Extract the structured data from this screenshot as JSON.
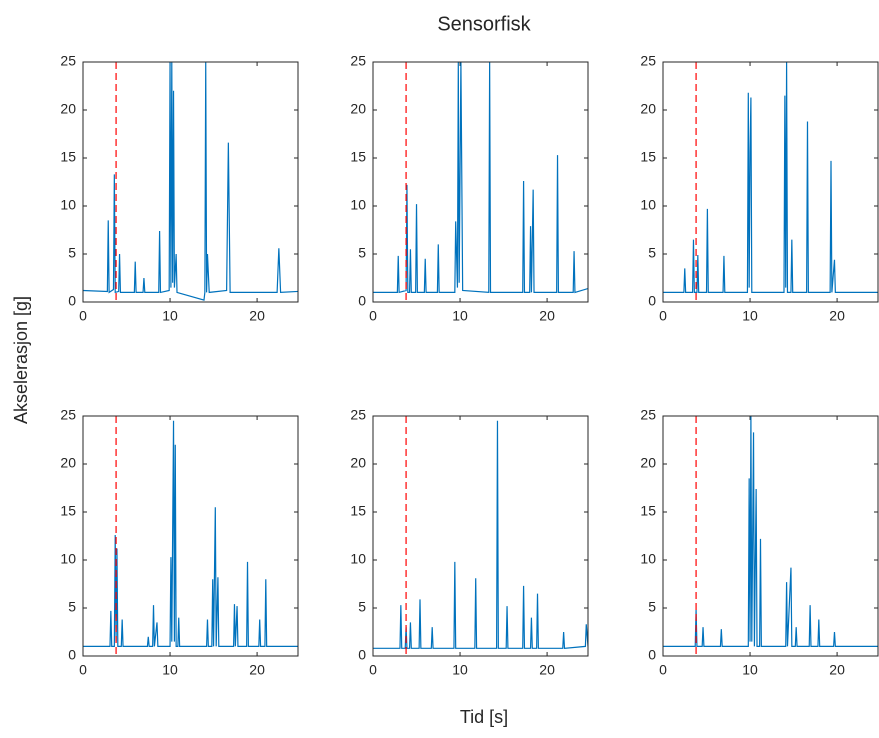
{
  "title": "Sensorfisk",
  "xlabel": "Tid [s]",
  "ylabel": "Akselerasjon [g]",
  "chart_data": [
    {
      "type": "line",
      "xlim": [
        0,
        24.7
      ],
      "ylim": [
        0,
        25
      ],
      "xticks": [
        0,
        10,
        20
      ],
      "yticks": [
        0,
        5,
        10,
        15,
        20,
        25
      ],
      "vline_x": 3.8,
      "vline_color": "#ff0000",
      "x": [
        0,
        2.8,
        2.9,
        3.0,
        3.5,
        3.6,
        3.7,
        4.1,
        4.2,
        4.3,
        5.9,
        6.0,
        6.1,
        6.9,
        7.0,
        7.1,
        8.7,
        8.8,
        8.9,
        9.9,
        10.0,
        10.1,
        10.2,
        10.3,
        10.4,
        10.5,
        10.7,
        10.8,
        13.9,
        14.0,
        14.1,
        14.2,
        14.3,
        14.5,
        16.5,
        16.7,
        16.9,
        22.3,
        22.5,
        22.7,
        24.7
      ],
      "series": [
        {
          "color": "#0072bd",
          "values": [
            1.2,
            1.1,
            8.5,
            1.0,
            1.3,
            13.3,
            1.0,
            1.1,
            5.0,
            1.0,
            1.0,
            4.2,
            1.0,
            1.0,
            2.5,
            1.0,
            1.0,
            7.4,
            1.0,
            1.2,
            25,
            1.5,
            25,
            2,
            22,
            1.5,
            5,
            1.0,
            0.2,
            1.0,
            25,
            1.0,
            5,
            1.0,
            1.2,
            16.6,
            1.0,
            1.0,
            5.6,
            1.0,
            1.1
          ]
        }
      ]
    },
    {
      "type": "line",
      "xlim": [
        0,
        24.7
      ],
      "ylim": [
        0,
        25
      ],
      "xticks": [
        0,
        10,
        20
      ],
      "yticks": [
        0,
        5,
        10,
        15,
        20,
        25
      ],
      "vline_x": 3.8,
      "vline_color": "#ff0000",
      "x": [
        0,
        2.8,
        2.9,
        3.0,
        3.8,
        3.9,
        4.0,
        4.2,
        4.3,
        4.4,
        4.9,
        5.0,
        5.1,
        5.9,
        6.0,
        6.1,
        7.4,
        7.5,
        7.6,
        9.4,
        9.5,
        9.7,
        9.8,
        9.9,
        10.1,
        10.3,
        13.3,
        13.4,
        13.5,
        17.2,
        17.3,
        17.4,
        18.0,
        18.1,
        18.2,
        18.4,
        18.5,
        21.1,
        21.2,
        21.3,
        23.0,
        23.1,
        23.2,
        24.7
      ],
      "series": [
        {
          "color": "#0072bd",
          "values": [
            1.0,
            1.0,
            4.8,
            1.0,
            1.2,
            12.2,
            1.0,
            1.0,
            5.5,
            1.0,
            1.0,
            10.2,
            1.0,
            1.0,
            4.5,
            1.0,
            1.0,
            6.0,
            1.0,
            1.0,
            8.4,
            1.5,
            25,
            2.0,
            25,
            1.2,
            1.0,
            25,
            1.0,
            1.0,
            12.6,
            1.0,
            1.0,
            7.9,
            1.0,
            11.7,
            1.0,
            1.0,
            15.3,
            1.0,
            1.0,
            5.3,
            1.0,
            1.4
          ]
        }
      ]
    },
    {
      "type": "line",
      "xlim": [
        0,
        24.7
      ],
      "ylim": [
        0,
        25
      ],
      "xticks": [
        0,
        10,
        20
      ],
      "yticks": [
        0,
        5,
        10,
        15,
        20,
        25
      ],
      "vline_x": 3.8,
      "vline_color": "#ff0000",
      "x": [
        0,
        2.4,
        2.5,
        2.6,
        3.4,
        3.5,
        3.6,
        3.9,
        4.0,
        4.1,
        5.0,
        5.1,
        5.2,
        6.9,
        7.0,
        7.1,
        9.7,
        9.8,
        9.9,
        10.0,
        10.1,
        10.2,
        13.9,
        14.0,
        14.1,
        14.2,
        14.3,
        14.7,
        14.8,
        14.9,
        16.5,
        16.6,
        16.7,
        19.2,
        19.3,
        19.4,
        19.7,
        19.8,
        24.7
      ],
      "series": [
        {
          "color": "#0072bd",
          "values": [
            1.0,
            1.0,
            3.5,
            1.0,
            1.0,
            6.5,
            1.0,
            1.0,
            4.9,
            1.0,
            1.0,
            9.7,
            1.0,
            1.0,
            4.8,
            1.0,
            1.0,
            21.8,
            1.5,
            15.6,
            21.3,
            1.0,
            1.0,
            21.5,
            1.5,
            25,
            1.0,
            1.0,
            6.5,
            1.0,
            1.0,
            18.8,
            1.0,
            1.0,
            14.7,
            1.0,
            4.4,
            1.0,
            1.0
          ]
        }
      ]
    },
    {
      "type": "line",
      "xlim": [
        0,
        24.7
      ],
      "ylim": [
        0,
        25
      ],
      "xticks": [
        0,
        10,
        20
      ],
      "yticks": [
        0,
        5,
        10,
        15,
        20,
        25
      ],
      "vline_x": 3.8,
      "vline_color": "#ff0000",
      "x": [
        0,
        3.1,
        3.2,
        3.3,
        3.6,
        3.7,
        3.8,
        3.9,
        4.0,
        4.4,
        4.5,
        4.6,
        7.4,
        7.5,
        7.6,
        8.0,
        8.1,
        8.2,
        8.5,
        8.6,
        10.0,
        10.1,
        10.2,
        10.4,
        10.5,
        10.6,
        10.7,
        10.9,
        11.0,
        11.1,
        14.2,
        14.3,
        14.4,
        14.8,
        14.9,
        15.0,
        15.2,
        15.3,
        15.5,
        15.6,
        17.3,
        17.4,
        17.5,
        17.7,
        17.8,
        18.8,
        18.9,
        19.0,
        20.2,
        20.3,
        20.4,
        20.9,
        21.0,
        21.1,
        24.7
      ],
      "series": [
        {
          "color": "#0072bd",
          "values": [
            1.0,
            1.0,
            4.7,
            1.0,
            1.0,
            12.6,
            1.5,
            11.2,
            1.0,
            1.0,
            3.8,
            1.0,
            1.0,
            2.0,
            1.0,
            1.0,
            5.3,
            1.0,
            3.5,
            1.0,
            1.0,
            10.3,
            1.5,
            24.5,
            1.5,
            22,
            1.0,
            1.0,
            4.0,
            1.0,
            1.0,
            3.8,
            1.0,
            1.0,
            8.0,
            1.0,
            15.5,
            1.0,
            8.2,
            1.0,
            1.0,
            5.4,
            1.0,
            5.2,
            1.0,
            1.0,
            9.8,
            1.0,
            1.0,
            3.8,
            1.0,
            1.0,
            8.0,
            1.0,
            1.0
          ]
        }
      ]
    },
    {
      "type": "line",
      "xlim": [
        0,
        24.7
      ],
      "ylim": [
        0,
        25
      ],
      "xticks": [
        0,
        10,
        20
      ],
      "yticks": [
        0,
        5,
        10,
        15,
        20,
        25
      ],
      "vline_x": 3.8,
      "vline_color": "#ff0000",
      "x": [
        0,
        3.1,
        3.2,
        3.3,
        3.7,
        3.8,
        3.9,
        4.2,
        4.3,
        4.4,
        5.3,
        5.4,
        5.5,
        6.7,
        6.8,
        6.9,
        9.3,
        9.4,
        9.5,
        11.7,
        11.8,
        11.9,
        14.2,
        14.3,
        14.4,
        15.3,
        15.4,
        15.5,
        17.2,
        17.3,
        17.4,
        18.1,
        18.2,
        18.3,
        18.8,
        18.9,
        19.0,
        21.8,
        21.9,
        22.0,
        24.4,
        24.5,
        24.7
      ],
      "series": [
        {
          "color": "#0072bd",
          "values": [
            0.8,
            0.8,
            5.3,
            0.8,
            0.8,
            3.0,
            0.8,
            0.8,
            3.5,
            0.8,
            0.8,
            5.9,
            0.8,
            0.8,
            3.0,
            0.8,
            0.8,
            9.8,
            0.8,
            0.8,
            8.1,
            0.8,
            0.8,
            24.5,
            0.8,
            0.8,
            5.2,
            0.8,
            0.8,
            7.3,
            0.8,
            0.8,
            4.0,
            0.8,
            0.8,
            6.5,
            0.8,
            0.8,
            2.5,
            0.8,
            1.0,
            3.3,
            1.0
          ]
        }
      ]
    },
    {
      "type": "line",
      "xlim": [
        0,
        24.7
      ],
      "ylim": [
        0,
        25
      ],
      "xticks": [
        0,
        10,
        20
      ],
      "yticks": [
        0,
        5,
        10,
        15,
        20,
        25
      ],
      "vline_x": 3.8,
      "vline_color": "#ff0000",
      "x": [
        0,
        3.7,
        3.8,
        3.9,
        4.5,
        4.6,
        4.7,
        6.6,
        6.7,
        6.8,
        9.8,
        9.9,
        10.0,
        10.1,
        10.2,
        10.4,
        10.5,
        10.7,
        10.8,
        11.1,
        11.2,
        11.3,
        14.1,
        14.2,
        14.3,
        14.7,
        14.8,
        15.2,
        15.3,
        15.4,
        16.8,
        16.9,
        17.0,
        17.8,
        17.9,
        18.0,
        19.6,
        19.7,
        19.8,
        24.7
      ],
      "series": [
        {
          "color": "#0072bd",
          "values": [
            1.0,
            1.0,
            4.8,
            1.0,
            1.0,
            3.0,
            1.0,
            1.0,
            2.8,
            1.0,
            1.0,
            18.5,
            1.5,
            25,
            1.5,
            23.3,
            1.0,
            17.4,
            1.0,
            1.0,
            12.2,
            1.0,
            1.0,
            7.7,
            1.0,
            9.2,
            1.0,
            1.0,
            3.0,
            1.0,
            1.0,
            5.3,
            1.0,
            1.0,
            3.8,
            1.0,
            1.0,
            2.5,
            1.0,
            1.0
          ]
        }
      ]
    }
  ]
}
